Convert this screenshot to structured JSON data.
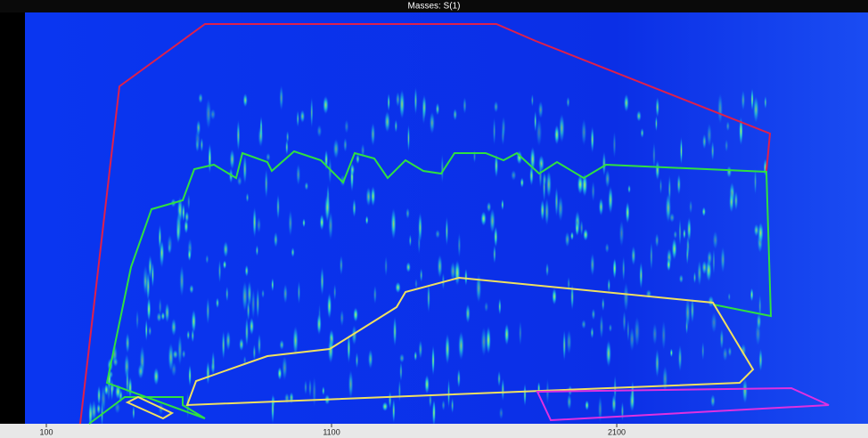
{
  "chart_data": {
    "type": "density",
    "title": "Masses: S(1)",
    "xlim": [
      25,
      2981
    ],
    "xticks": [
      100,
      1100,
      2100
    ]
  }
}
